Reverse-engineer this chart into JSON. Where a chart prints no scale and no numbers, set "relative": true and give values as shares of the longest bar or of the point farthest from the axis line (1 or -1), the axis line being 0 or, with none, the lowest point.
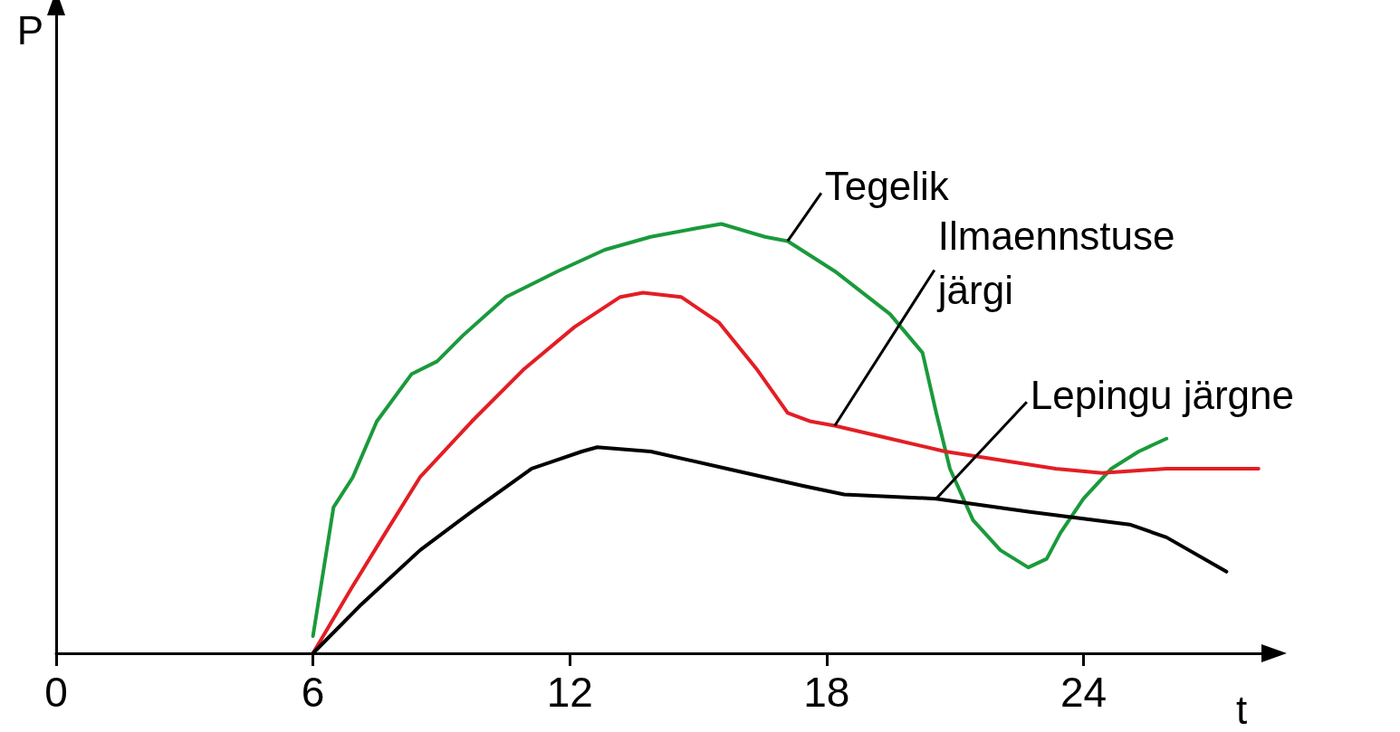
{
  "chart_data": {
    "type": "line",
    "xlabel": "t",
    "ylabel": "P",
    "relative": true,
    "xlim": [
      0,
      28.2
    ],
    "xticks": [
      0,
      6,
      12,
      18,
      24
    ],
    "grid": false,
    "legend": false,
    "marker": "none",
    "line_style": "solid",
    "series": [
      {
        "name": "Tegelik",
        "color": "#1a9a3c",
        "x": [
          6,
          6.08,
          6.48,
          6.93,
          7.49,
          8.3,
          8.9,
          9.5,
          10.51,
          11.72,
          12.82,
          13.89,
          14.96,
          15.54,
          16.56,
          17.09,
          18.19,
          19.48,
          20.24,
          20.56,
          20.88,
          21.42,
          22.06,
          22.71,
          23.14,
          23.46,
          24,
          24.65,
          25.29,
          25.94
        ],
        "values": [
          0.04,
          0.09,
          0.34,
          0.41,
          0.54,
          0.65,
          0.68,
          0.74,
          0.83,
          0.89,
          0.94,
          0.97,
          0.99,
          1,
          0.97,
          0.96,
          0.89,
          0.79,
          0.7,
          0.56,
          0.43,
          0.31,
          0.24,
          0.2,
          0.22,
          0.28,
          0.36,
          0.43,
          0.47,
          0.5
        ]
      },
      {
        "name": "Ilmaennstuse järgi",
        "color": "#e31e24",
        "x": [
          6,
          6.89,
          7.69,
          8.5,
          9.71,
          10.91,
          12.11,
          13.18,
          13.71,
          14.6,
          15.49,
          16.38,
          17.09,
          17.63,
          18.19,
          19.48,
          20.77,
          22.06,
          23.35,
          24.43,
          25.94,
          28.09
        ],
        "values": [
          0,
          0.15,
          0.28,
          0.41,
          0.54,
          0.66,
          0.76,
          0.83,
          0.84,
          0.83,
          0.77,
          0.66,
          0.56,
          0.54,
          0.53,
          0.5,
          0.47,
          0.45,
          0.43,
          0.42,
          0.43,
          0.43
        ]
      },
      {
        "name": "Lepingu järgne",
        "color": "#000000",
        "x": [
          6,
          7.09,
          8.5,
          9.71,
          11.11,
          12.28,
          12.64,
          13.89,
          15.67,
          17.45,
          18.41,
          20.56,
          22.71,
          25.08,
          25.94,
          27.34
        ],
        "values": [
          0,
          0.11,
          0.24,
          0.33,
          0.43,
          0.47,
          0.48,
          0.47,
          0.43,
          0.39,
          0.37,
          0.36,
          0.33,
          0.3,
          0.27,
          0.19
        ]
      }
    ]
  }
}
